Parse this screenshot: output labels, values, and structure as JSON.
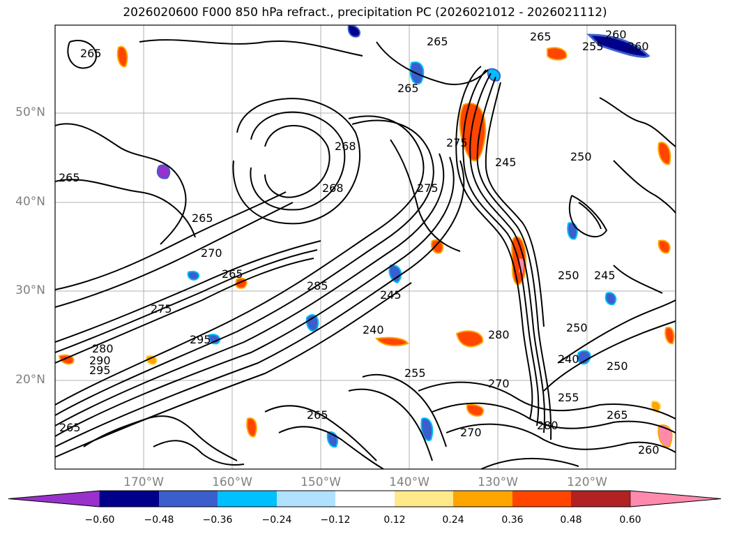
{
  "title": "2026020600 F000 850 hPa refract., precipitation PC (2026021012 - 2026021112)",
  "map": {
    "projection": "cylindrical",
    "region": "North-East Pacific",
    "lat_labels": [
      "50°N",
      "40°N",
      "30°N",
      "20°N"
    ],
    "lon_labels": [
      "170°W",
      "160°W",
      "150°W",
      "140°W",
      "130°W",
      "120°W"
    ],
    "graticule_color": "#b0b0b0",
    "contour_color": "#000000",
    "contour_labels": [
      "265",
      "265",
      "268",
      "265",
      "265",
      "270",
      "265",
      "275",
      "285",
      "295",
      "280",
      "280",
      "290",
      "295",
      "268",
      "260",
      "265",
      "275",
      "270",
      "265",
      "245",
      "240",
      "275",
      "245",
      "250",
      "240",
      "250",
      "255",
      "265",
      "280",
      "270",
      "260",
      "255",
      "260",
      "265",
      "250",
      "255",
      "245",
      "250",
      "265"
    ]
  },
  "colorbar": {
    "extend": "both",
    "colors": [
      "#9932cc",
      "#00008b",
      "#3a5fcd",
      "#00bfff",
      "#b0e2ff",
      "#ffffff",
      "#ffe98a",
      "#ffa500",
      "#ff4500",
      "#b22222",
      "#ff8aad"
    ],
    "tick_labels": [
      "−0.60",
      "−0.48",
      "−0.36",
      "−0.24",
      "−0.12",
      "0.12",
      "0.24",
      "0.36",
      "0.48",
      "0.60"
    ]
  }
}
